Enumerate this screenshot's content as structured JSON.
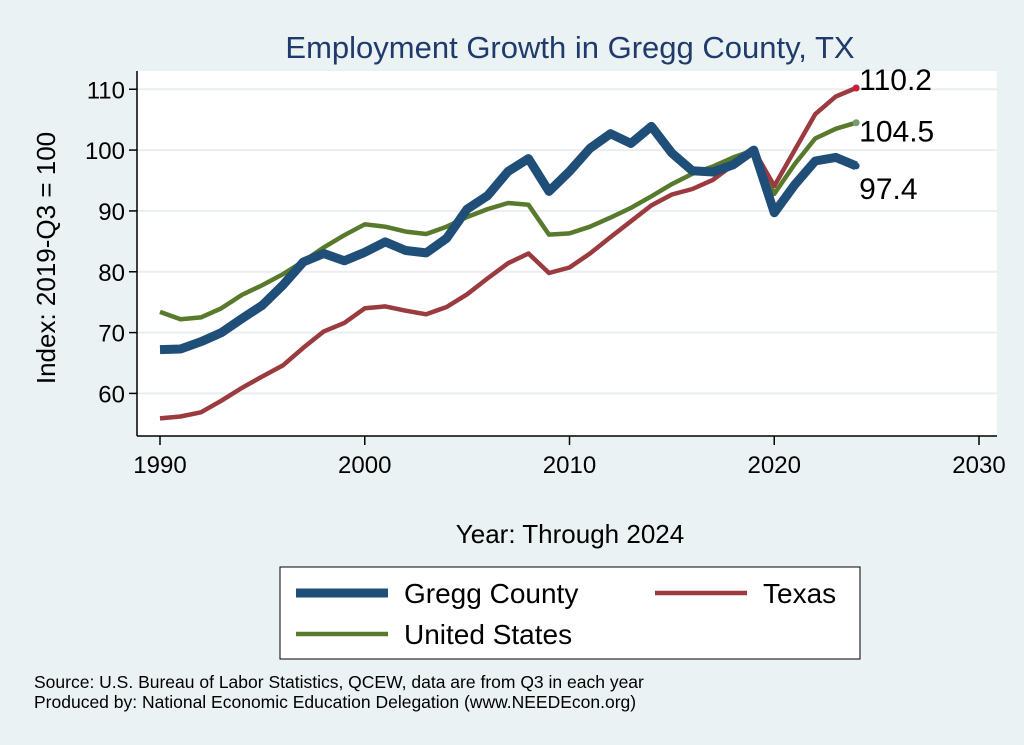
{
  "chart_data": {
    "type": "line",
    "title": "Employment Growth in Gregg County, TX",
    "xlabel": "Year: Through 2024",
    "ylabel": "Index: 2019-Q3 = 100",
    "xlim": [
      1990,
      2030
    ],
    "ylim": [
      53,
      113
    ],
    "xticks": [
      1990,
      2000,
      2010,
      2020,
      2030
    ],
    "yticks": [
      60,
      70,
      80,
      90,
      100,
      110
    ],
    "grid": true,
    "legend_position": "bottom",
    "x": [
      1990,
      1991,
      1992,
      1993,
      1994,
      1995,
      1996,
      1997,
      1998,
      1999,
      2000,
      2001,
      2002,
      2003,
      2004,
      2005,
      2006,
      2007,
      2008,
      2009,
      2010,
      2011,
      2012,
      2013,
      2014,
      2015,
      2016,
      2017,
      2018,
      2019,
      2020,
      2021,
      2022,
      2023,
      2024
    ],
    "series": [
      {
        "name": "Gregg  County",
        "color": "#1f4e79",
        "end_label": "97.4",
        "values": [
          67.2,
          67.3,
          68.5,
          70.0,
          72.3,
          74.5,
          77.8,
          81.6,
          83.0,
          81.8,
          83.2,
          84.9,
          83.5,
          83.1,
          85.5,
          90.3,
          92.5,
          96.5,
          98.6,
          93.2,
          96.5,
          100.3,
          102.7,
          101.1,
          103.9,
          99.5,
          96.6,
          96.4,
          97.6,
          100.0,
          89.7,
          94.3,
          98.2,
          98.8,
          97.4
        ]
      },
      {
        "name": "Texas",
        "color": "#9b3a3f",
        "end_label": "110.2",
        "values": [
          55.9,
          56.2,
          56.9,
          58.8,
          60.9,
          62.8,
          64.6,
          67.5,
          70.2,
          71.6,
          74.0,
          74.3,
          73.6,
          73.0,
          74.2,
          76.3,
          78.9,
          81.4,
          83.0,
          79.8,
          80.7,
          83.0,
          85.7,
          88.3,
          90.9,
          92.7,
          93.6,
          95.1,
          97.6,
          100.0,
          94.1,
          100.0,
          105.9,
          108.8,
          110.2
        ]
      },
      {
        "name": "United States",
        "color": "#577a2c",
        "end_label": "104.5",
        "values": [
          73.4,
          72.2,
          72.5,
          74.0,
          76.2,
          77.8,
          79.6,
          81.7,
          84.0,
          86.0,
          87.8,
          87.4,
          86.6,
          86.2,
          87.4,
          89.0,
          90.3,
          91.3,
          91.0,
          86.1,
          86.3,
          87.4,
          88.9,
          90.5,
          92.4,
          94.4,
          96.1,
          97.3,
          98.8,
          100.0,
          92.8,
          97.7,
          101.9,
          103.5,
          104.5
        ]
      }
    ],
    "legend": [
      "Gregg  County",
      "Texas",
      "United States"
    ]
  },
  "source": {
    "line1": "Source: U.S. Bureau of Labor Statistics, QCEW, data are from Q3 in each year",
    "line2": "Produced by: National Economic Education Delegation (www.NEEDEcon.org)"
  }
}
